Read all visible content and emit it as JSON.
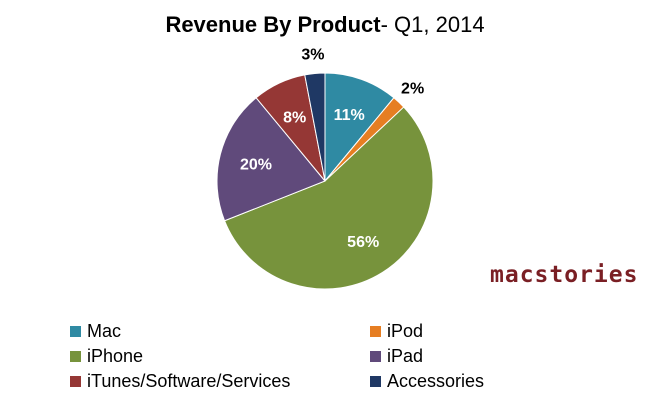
{
  "title": {
    "bold_part": "Revenue By Product",
    "normal_part": "- Q1, 2014"
  },
  "logo": "macstories",
  "chart_data": {
    "type": "pie",
    "title": "Revenue By Product- Q1, 2014",
    "legend_placement": "bottom",
    "slices": [
      {
        "name": "Mac",
        "value": 11,
        "label": "11%",
        "color": "#2f8aa3"
      },
      {
        "name": "iPod",
        "value": 2,
        "label": "2%",
        "color": "#e67e22"
      },
      {
        "name": "iPhone",
        "value": 56,
        "label": "56%",
        "color": "#77933c"
      },
      {
        "name": "iPad",
        "value": 20,
        "label": "20%",
        "color": "#604a7b"
      },
      {
        "name": "iTunes/Software/Services",
        "value": 8,
        "label": "8%",
        "color": "#953735"
      },
      {
        "name": "Accessories",
        "value": 3,
        "label": "3%",
        "color": "#1f3864"
      }
    ]
  }
}
